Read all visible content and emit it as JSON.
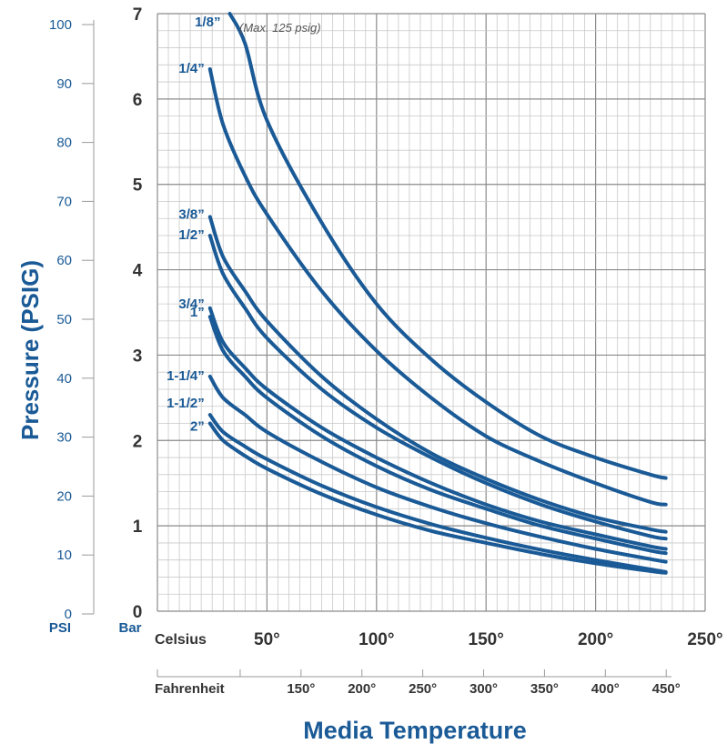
{
  "chart_data": {
    "type": "line",
    "title": "",
    "xlabel": "Media Temperature",
    "ylabel": "Pressure (PSIG)",
    "psi_axis": {
      "unit_label": "PSI",
      "ticks": [
        "0",
        "10",
        "20",
        "30",
        "40",
        "50",
        "60",
        "70",
        "80",
        "90",
        "100"
      ],
      "range": [
        0,
        100
      ]
    },
    "bar_axis": {
      "unit_label": "Bar",
      "ticks": [
        "0",
        "1",
        "2",
        "3",
        "4",
        "5",
        "6",
        "7"
      ],
      "range": [
        0,
        7
      ]
    },
    "celsius_axis": {
      "unit_label": "Celsius",
      "ticks": [
        {
          "value": 50,
          "label": "50°"
        },
        {
          "value": 100,
          "label": "100°"
        },
        {
          "value": 150,
          "label": "150°"
        },
        {
          "value": 200,
          "label": "200°"
        },
        {
          "value": 250,
          "label": "250°"
        }
      ],
      "range": [
        0,
        250
      ]
    },
    "fahrenheit_axis": {
      "unit_label": "Fahrenheit",
      "ticks": [
        {
          "value": 150,
          "label": "150°"
        },
        {
          "value": 200,
          "label": "200°"
        },
        {
          "value": 250,
          "label": "250°"
        },
        {
          "value": 300,
          "label": "300°"
        },
        {
          "value": 350,
          "label": "350°"
        },
        {
          "value": 400,
          "label": "400°"
        },
        {
          "value": 450,
          "label": "450°"
        }
      ]
    },
    "grid": true,
    "line_color": "#1a5a96",
    "note": "(Max. 125 psig)",
    "series": [
      {
        "name": "1/8”",
        "x": [
          33,
          40,
          50,
          75,
          100,
          125,
          150,
          175,
          200,
          225,
          232
        ],
        "y": [
          7.0,
          6.65,
          5.75,
          4.55,
          3.6,
          2.95,
          2.45,
          2.05,
          1.8,
          1.6,
          1.56
        ]
      },
      {
        "name": "1/4”",
        "x": [
          24,
          30,
          40,
          50,
          75,
          100,
          125,
          150,
          175,
          200,
          225,
          232
        ],
        "y": [
          6.35,
          5.7,
          5.1,
          4.65,
          3.75,
          3.05,
          2.5,
          2.05,
          1.75,
          1.5,
          1.28,
          1.25
        ]
      },
      {
        "name": "3/8”",
        "x": [
          24,
          30,
          40,
          50,
          75,
          100,
          125,
          150,
          175,
          200,
          225,
          232
        ],
        "y": [
          4.62,
          4.15,
          3.75,
          3.4,
          2.75,
          2.25,
          1.85,
          1.55,
          1.3,
          1.1,
          0.96,
          0.93
        ]
      },
      {
        "name": "1/2”",
        "x": [
          24,
          30,
          40,
          50,
          75,
          100,
          125,
          150,
          175,
          200,
          225,
          232
        ],
        "y": [
          4.4,
          3.95,
          3.55,
          3.2,
          2.6,
          2.15,
          1.8,
          1.5,
          1.25,
          1.05,
          0.88,
          0.85
        ]
      },
      {
        "name": "3/4”",
        "x": [
          24,
          30,
          40,
          50,
          75,
          100,
          125,
          150,
          175,
          200,
          225,
          232
        ],
        "y": [
          3.55,
          3.15,
          2.85,
          2.6,
          2.15,
          1.8,
          1.5,
          1.25,
          1.05,
          0.9,
          0.76,
          0.73
        ]
      },
      {
        "name": "1”",
        "x": [
          24,
          30,
          40,
          50,
          75,
          100,
          125,
          150,
          175,
          200,
          225,
          232
        ],
        "y": [
          3.45,
          3.05,
          2.75,
          2.5,
          2.05,
          1.7,
          1.42,
          1.2,
          1.0,
          0.85,
          0.71,
          0.68
        ]
      },
      {
        "name": "1-1/4”",
        "x": [
          24,
          30,
          40,
          50,
          75,
          100,
          125,
          150,
          175,
          200,
          225,
          232
        ],
        "y": [
          2.75,
          2.5,
          2.3,
          2.1,
          1.75,
          1.45,
          1.22,
          1.03,
          0.87,
          0.73,
          0.61,
          0.58
        ]
      },
      {
        "name": "1-1/2”",
        "x": [
          24,
          30,
          40,
          50,
          75,
          100,
          125,
          150,
          175,
          200,
          225,
          232
        ],
        "y": [
          2.3,
          2.1,
          1.93,
          1.78,
          1.47,
          1.22,
          1.02,
          0.86,
          0.72,
          0.6,
          0.49,
          0.46
        ]
      },
      {
        "name": "2”",
        "x": [
          24,
          30,
          40,
          50,
          75,
          100,
          125,
          150,
          175,
          200,
          225,
          232
        ],
        "y": [
          2.2,
          2.0,
          1.82,
          1.67,
          1.37,
          1.13,
          0.94,
          0.8,
          0.67,
          0.56,
          0.47,
          0.45
        ]
      }
    ]
  }
}
